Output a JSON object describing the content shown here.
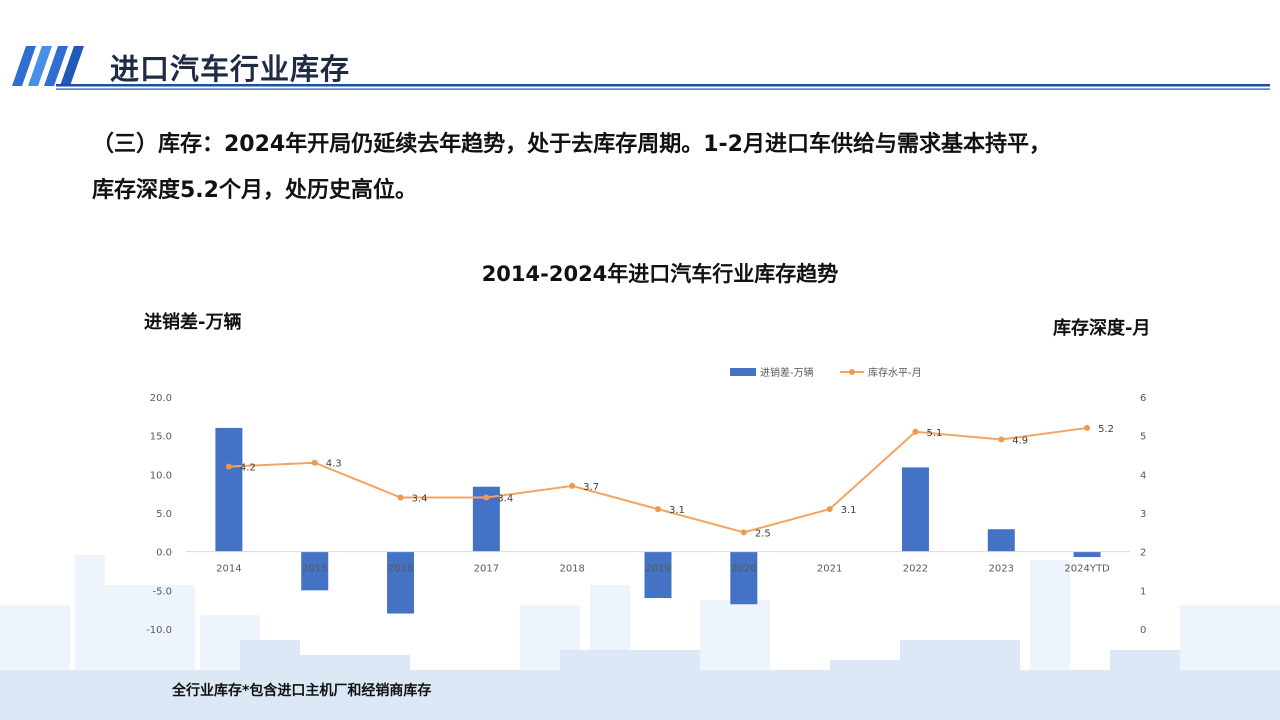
{
  "header": {
    "title": "进口汽车行业库存"
  },
  "intro": {
    "line1": "（三）库存：2024年开局仍延续去年趋势，处于去库存周期。1-2月进口车供给与需求基本持平，",
    "line2": "库存深度5.2个月，处历史高位。"
  },
  "chart_data": {
    "type": "bar+line",
    "title": "2014-2024年进口汽车行业库存趋势",
    "ylabel_left": "进销差-万辆",
    "ylabel_right": "库存深度-月",
    "categories": [
      "2014",
      "2015",
      "2016",
      "2017",
      "2018",
      "2019",
      "2020",
      "2021",
      "2022",
      "2023",
      "2024YTD"
    ],
    "series": [
      {
        "name": "进销差-万辆",
        "type": "bar",
        "axis": "left",
        "color": "#4472c4",
        "values": [
          16.0,
          -5.0,
          -8.0,
          8.4,
          0,
          -6.0,
          -6.8,
          0,
          10.9,
          2.9,
          -0.7
        ]
      },
      {
        "name": "库存水平-月",
        "type": "line",
        "axis": "right",
        "color": "#f4a460",
        "values": [
          4.2,
          4.3,
          3.4,
          3.4,
          3.7,
          3.1,
          2.5,
          3.1,
          5.1,
          4.9,
          5.2
        ],
        "labels": [
          "4.2",
          "4.3",
          "3.4",
          "3.4",
          "3.7",
          "3.1",
          "2.5",
          "3.1",
          "5.1",
          "4.9",
          "5.2"
        ]
      }
    ],
    "ylim_left": [
      -10,
      20
    ],
    "yticks_left": [
      "20.0",
      "15.0",
      "10.0",
      "5.0",
      "0.0",
      "-5.0",
      "-10.0"
    ],
    "ylim_right": [
      0,
      6
    ],
    "yticks_right": [
      "6",
      "5",
      "4",
      "3",
      "2",
      "1",
      "0"
    ],
    "legend_position": "top-right",
    "grid": false
  },
  "footnote": "全行业库存*包含进口主机厂和经销商库存"
}
